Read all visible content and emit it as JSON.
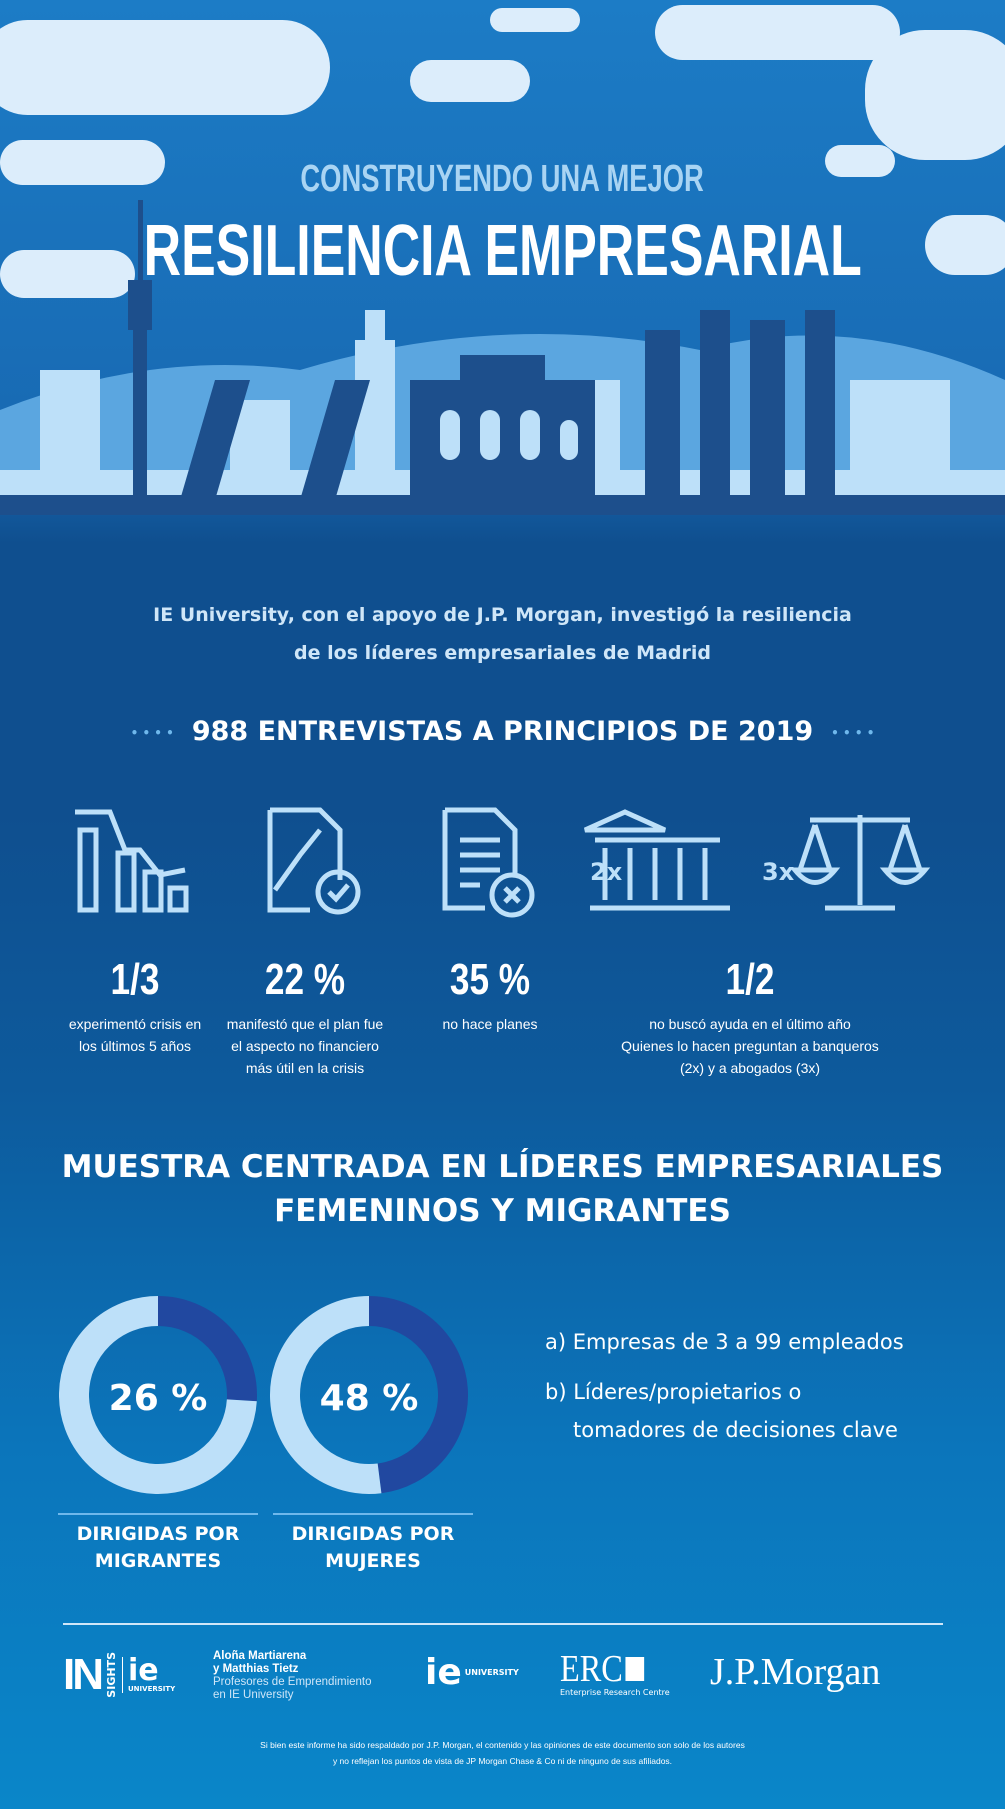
{
  "header": {
    "kicker": "CONSTRUYENDO UNA MEJOR",
    "title": "RESILIENCIA EMPRESARIAL"
  },
  "intro": {
    "line1": "IE University, con el apoyo de J.P. Morgan, investigó la resiliencia",
    "line2": "de los líderes empresariales de Madrid"
  },
  "section1": {
    "title": "988 ENTREVISTAS A PRINCIPIOS DE 2019",
    "dots": "• • • •"
  },
  "icons": {
    "bank_multiplier": "2x",
    "scale_multiplier": "3x",
    "names": [
      "declining-bar-chart-icon",
      "document-check-icon",
      "document-x-icon",
      "bank-icon",
      "scales-icon"
    ]
  },
  "stats": [
    {
      "value": "1/3",
      "desc": [
        "experimentó crisis en",
        "los últimos 5 años"
      ]
    },
    {
      "value": "22 %",
      "desc": [
        "manifestó que el plan fue",
        "el aspecto no financiero",
        "más útil en la crisis"
      ]
    },
    {
      "value": "35 %",
      "desc": [
        "no hace planes"
      ]
    },
    {
      "value": "1/2",
      "desc": [
        "no buscó ayuda en el último año",
        "Quienes lo hacen preguntan a banqueros",
        "(2x) y a abogados (3x)"
      ]
    }
  ],
  "section2": {
    "line1": "MUESTRA CENTRADA EN LÍDERES EMPRESARIALES",
    "line2": "FEMENINOS Y MIGRANTES"
  },
  "chart_data": [
    {
      "type": "pie",
      "style": "donut",
      "label": "26 %",
      "values": [
        26,
        74
      ],
      "caption": [
        "DIRIGIDAS POR",
        "MIGRANTES"
      ],
      "colors": [
        "#2148a0",
        "#bde0f9"
      ]
    },
    {
      "type": "pie",
      "style": "donut",
      "label": "48 %",
      "values": [
        48,
        52
      ],
      "caption": [
        "DIRIGIDAS POR",
        "MUJERES"
      ],
      "colors": [
        "#2148a0",
        "#bde0f9"
      ]
    }
  ],
  "criteria": [
    "a) Empresas de 3 a 99 empleados",
    "b) Líderes/propietarios o",
    "tomadores de decisiones clave"
  ],
  "footer": {
    "insights_logo": {
      "in": "IN",
      "sights": "SIGHTS",
      "ie": "ie",
      "university": "UNIVERSITY"
    },
    "authors": [
      "Aloña Martiarena",
      "y Matthias Tietz"
    ],
    "author_role": [
      "Profesores de Emprendimiento",
      "en IE University"
    ],
    "ie_logo": {
      "ie": "ie",
      "university": "UNIVERSITY"
    },
    "erc_logo": {
      "name": "ERC",
      "sub": "Enterprise Research Centre"
    },
    "jpm_logo": "J.P.Morgan",
    "disclaimer": [
      "Si bien este informe ha sido respaldado por J.P. Morgan, el contenido y las opiniones de este documento son solo de los autores",
      "y no reflejan los puntos de vista de JP Morgan Chase & Co ni de ninguno de sus afiliados."
    ]
  },
  "colors": {
    "light": "#bde0f9",
    "dark": "#2148a0",
    "navy": "#0f4f8f",
    "kicker": "#a9d4f3"
  }
}
